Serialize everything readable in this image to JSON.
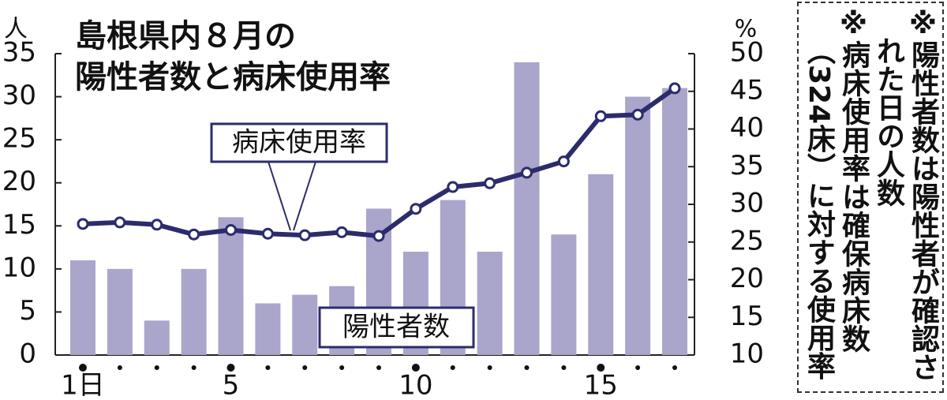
{
  "chart_data": {
    "type": "bar",
    "title": [
      "島根県内８月の",
      "陽性者数と病床使用率"
    ],
    "ylabel": "人",
    "y2label": "%",
    "categories": [
      "1日",
      null,
      null,
      null,
      "5",
      null,
      null,
      null,
      null,
      "10",
      null,
      null,
      null,
      null,
      "15",
      null,
      null
    ],
    "series": [
      {
        "name": "陽性者数",
        "type": "bar",
        "color": "#a9a5cb",
        "values": [
          11,
          10,
          4,
          10,
          16,
          6,
          7,
          8,
          17,
          12,
          18,
          12,
          34,
          14,
          21,
          30,
          31
        ]
      },
      {
        "name": "病床使用率",
        "type": "line",
        "axis": "y2",
        "color": "#2c2c6c",
        "values": [
          27.4,
          27.6,
          27.3,
          26.0,
          26.6,
          26.1,
          25.9,
          26.3,
          25.8,
          29.4,
          32.3,
          32.8,
          34.2,
          35.7,
          41.7,
          41.9,
          45.4
        ]
      }
    ],
    "ylim": [
      0,
      35
    ],
    "yticks": [
      0,
      5,
      10,
      15,
      20,
      25,
      30,
      35
    ],
    "y2lim": [
      10,
      50
    ],
    "y2ticks": [
      10,
      15,
      20,
      25,
      30,
      35,
      40,
      45,
      50
    ],
    "notes": [
      "※陽性者数は陽性者が確認された日の人数",
      "※病床使用率は確保病床数（324床）に対する使用率"
    ]
  }
}
